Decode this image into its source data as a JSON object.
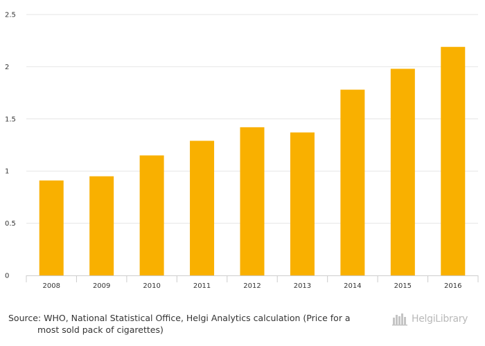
{
  "chart_data": {
    "type": "bar",
    "categories": [
      "2008",
      "2009",
      "2010",
      "2011",
      "2012",
      "2013",
      "2014",
      "2015",
      "2016"
    ],
    "values": [
      0.91,
      0.95,
      1.15,
      1.29,
      1.42,
      1.37,
      1.78,
      1.98,
      2.19
    ],
    "ylim": [
      0,
      2.5
    ],
    "yticks": [
      "0",
      "0.5",
      "1",
      "1.5",
      "2",
      "2.5"
    ],
    "grid": true,
    "bar_color": "#f9b000",
    "grid_color": "#e6e6e6",
    "axis_color": "#cccccc"
  },
  "footer": {
    "source_line1": "Source: WHO, National Statistical Office, Helgi Analytics calculation (Price for a",
    "source_line2": "most sold pack of cigarettes)",
    "logo_text": "HelgiLibrary",
    "logo_icon": "helgi-library-logo-icon"
  }
}
